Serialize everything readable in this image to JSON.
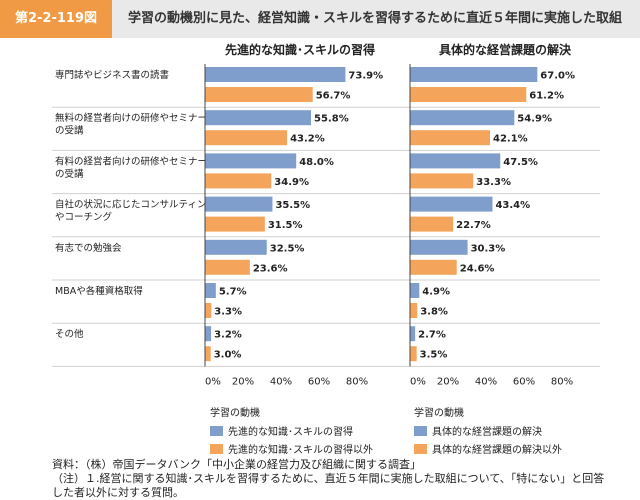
{
  "header": {
    "figure_number": "第2-2-119図",
    "title": "学習の動機別に見た、経営知識・スキルを習得するために直近５年間に実施した取組"
  },
  "colors": {
    "series1": "#7f9ecb",
    "series2": "#f5a45c",
    "header_accent": "#f09a45",
    "header_bg": "#e9e9e9"
  },
  "chart_data": [
    {
      "type": "bar",
      "orientation": "horizontal",
      "title": "先進的な知識･スキルの習得",
      "categories": [
        "専門誌やビジネス書の読書",
        "無料の経営者向けの研修やセミナーの受講",
        "有料の経営者向けの研修やセミナーの受講",
        "自社の状況に応じたコンサルティングやコーチング",
        "有志での勉強会",
        "MBAや各種資格取得",
        "その他"
      ],
      "series": [
        {
          "name": "先進的な知識･スキルの習得",
          "values": [
            73.9,
            55.8,
            48.0,
            35.5,
            32.5,
            5.7,
            3.2
          ],
          "labels": [
            "73.9%",
            "55.8%",
            "48.0%",
            "35.5%",
            "32.5%",
            "5.7%",
            "3.2%"
          ]
        },
        {
          "name": "先進的な知識･スキルの習得以外",
          "values": [
            56.7,
            43.2,
            34.9,
            31.5,
            23.6,
            3.3,
            3.0
          ],
          "labels": [
            "56.7%",
            "43.2%",
            "34.9%",
            "31.5%",
            "23.6%",
            "3.3%",
            "3.0%"
          ]
        }
      ],
      "xlim": [
        0,
        100
      ],
      "xticks": [
        "0%",
        "20%",
        "40%",
        "60%",
        "80%"
      ]
    },
    {
      "type": "bar",
      "orientation": "horizontal",
      "title": "具体的な経営課題の解決",
      "categories": [
        "専門誌やビジネス書の読書",
        "無料の経営者向けの研修やセミナーの受講",
        "有料の経営者向けの研修やセミナーの受講",
        "自社の状況に応じたコンサルティングやコーチング",
        "有志での勉強会",
        "MBAや各種資格取得",
        "その他"
      ],
      "series": [
        {
          "name": "具体的な経営課題の解決",
          "values": [
            67.0,
            54.9,
            47.5,
            43.4,
            30.3,
            4.9,
            2.7
          ],
          "labels": [
            "67.0%",
            "54.9%",
            "47.5%",
            "43.4%",
            "30.3%",
            "4.9%",
            "2.7%"
          ]
        },
        {
          "name": "具体的な経営課題の解決以外",
          "values": [
            61.2,
            42.1,
            33.3,
            22.7,
            24.6,
            3.8,
            3.5
          ],
          "labels": [
            "61.2%",
            "42.1%",
            "33.3%",
            "22.7%",
            "24.6%",
            "3.8%",
            "3.5%"
          ]
        }
      ],
      "xlim": [
        0,
        100
      ],
      "xticks": [
        "0%",
        "20%",
        "40%",
        "60%",
        "80%"
      ]
    }
  ],
  "category_labels": [
    [
      "専門誌やビジネス書の読書"
    ],
    [
      "無料の経営者向けの研修やセミナー",
      "の受講"
    ],
    [
      "有料の経営者向けの研修やセミナー",
      "の受講"
    ],
    [
      "自社の状況に応じたコンサルティング",
      "やコーチング"
    ],
    [
      "有志での勉強会"
    ],
    [
      "MBAや各種資格取得"
    ],
    [
      "その他"
    ]
  ],
  "legend_left": {
    "heading": "学習の動機",
    "item1": "先進的な知識･スキルの習得",
    "item2": "先進的な知識･スキルの習得以外"
  },
  "legend_right": {
    "heading": "学習の動機",
    "item1": "具体的な経営課題の解決",
    "item2": "具体的な経営課題の解決以外"
  },
  "notes": {
    "source": "資料：（株）帝国データバンク「中小企業の経営力及び組織に関する調査」",
    "note1": "（注）１.経営に関する知識･スキルを習得するために、直近５年間に実施した取組について、「特にない」と回答",
    "note1_cont": "した者以外に対する質問。"
  }
}
